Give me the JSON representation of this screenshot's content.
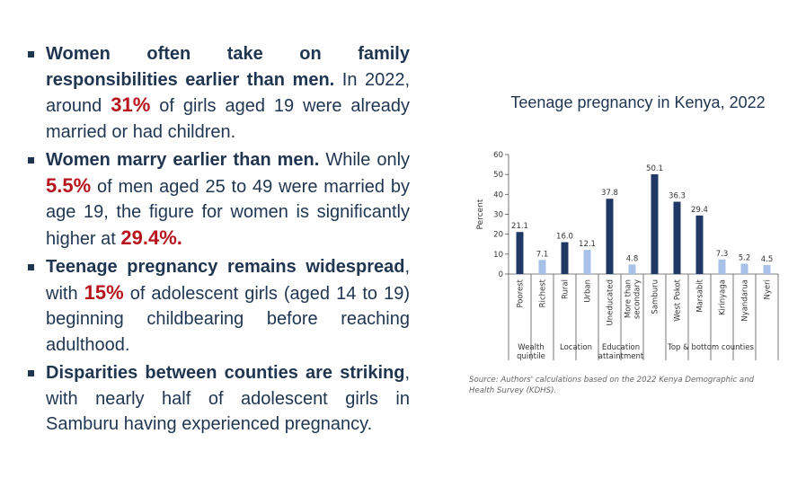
{
  "bullets": [
    {
      "parts": [
        {
          "t": "Women often take on family responsibilities earlier than men.",
          "s": "bold"
        },
        {
          "t": " In 2022, around ",
          "s": "normal"
        },
        {
          "t": "31%",
          "s": "hl"
        },
        {
          "t": " of girls aged 19 were already married or had children.",
          "s": "normal"
        }
      ]
    },
    {
      "parts": [
        {
          "t": "Women marry earlier than men.",
          "s": "bold"
        },
        {
          "t": " While only ",
          "s": "normal"
        },
        {
          "t": "5.5%",
          "s": "hl"
        },
        {
          "t": " of men aged 25 to 49 were married by age 19, the figure for women is significantly higher at ",
          "s": "normal"
        },
        {
          "t": "29.4%.",
          "s": "hl"
        }
      ]
    },
    {
      "parts": [
        {
          "t": "Teenage pregnancy remains widespread",
          "s": "bold"
        },
        {
          "t": ", with ",
          "s": "normal"
        },
        {
          "t": "15%",
          "s": "hl"
        },
        {
          "t": " of adolescent girls (aged 14 to 19) beginning childbearing before reaching adulthood.",
          "s": "normal"
        }
      ]
    },
    {
      "parts": [
        {
          "t": "Disparities between counties are striking",
          "s": "bold"
        },
        {
          "t": ", with nearly half of adolescent girls in Samburu having experienced pregnancy.",
          "s": "normal"
        }
      ]
    }
  ],
  "chart_data": {
    "type": "bar",
    "title": "Teenage pregnancy in Kenya, 2022",
    "ylabel": "Percent",
    "ylim": [
      0,
      60
    ],
    "yticks": [
      0,
      10,
      20,
      30,
      40,
      50,
      60
    ],
    "categories": [
      "Poorest",
      "Richest",
      "Rural",
      "Urban",
      "Uneducated",
      "More than secondary",
      "Samburu",
      "West Pokot",
      "Marsabit",
      "Kirinyaga",
      "Nyandarua",
      "Nyeri"
    ],
    "values": [
      21.1,
      7.1,
      16.0,
      12.1,
      37.8,
      4.8,
      50.1,
      36.3,
      29.4,
      7.3,
      5.2,
      4.5
    ],
    "value_labels": [
      "21.1",
      "7.1",
      "16.0",
      "12.1",
      "37.8",
      "4.8",
      "50.1",
      "36.3",
      "29.4",
      "7.3",
      "5.2",
      "4.5"
    ],
    "shade": [
      "dark",
      "light",
      "dark",
      "light",
      "dark",
      "light",
      "dark",
      "dark",
      "dark",
      "light",
      "light",
      "light"
    ],
    "groups": [
      {
        "label": [
          "Wealth",
          "quintile"
        ],
        "start": 0,
        "end": 1
      },
      {
        "label": [
          "Location"
        ],
        "start": 2,
        "end": 3
      },
      {
        "label": [
          "Education",
          "attaintment"
        ],
        "start": 4,
        "end": 5
      },
      {
        "label": [
          "Top & bottom counties"
        ],
        "start": 6,
        "end": 11
      }
    ],
    "colors": {
      "dark": "#1f3864",
      "light": "#a8c1e8"
    },
    "grid": false,
    "legend": "none",
    "source": "Source: Authors' calculations based on the 2022 Kenya Demographic and Health Survey (KDHS)."
  }
}
